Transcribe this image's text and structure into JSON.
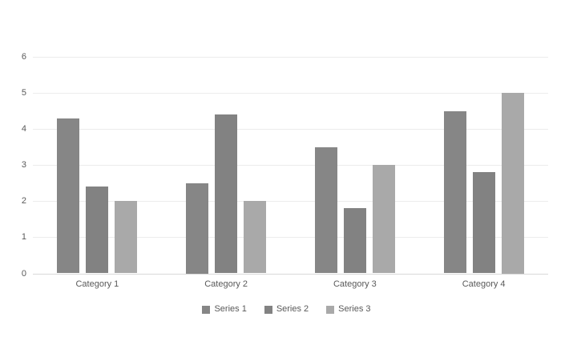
{
  "chart_data": {
    "type": "bar",
    "title": "",
    "xlabel": "",
    "ylabel": "",
    "categories": [
      "Category 1",
      "Category 2",
      "Category 3",
      "Category 4"
    ],
    "series": [
      {
        "name": "Series 1",
        "color": "#868686",
        "values": [
          4.3,
          2.5,
          3.5,
          4.5
        ]
      },
      {
        "name": "Series 2",
        "color": "#828282",
        "values": [
          2.4,
          4.4,
          1.8,
          2.8
        ]
      },
      {
        "name": "Series 3",
        "color": "#a9a9a9",
        "values": [
          2.0,
          2.0,
          3.0,
          5.0
        ]
      }
    ],
    "ylim": [
      0,
      6
    ],
    "yticks": [
      "0",
      "1",
      "2",
      "3",
      "4",
      "5",
      "6"
    ],
    "grid": true,
    "legend_position": "bottom"
  },
  "colors": {
    "background": "#ffffff",
    "gridline": "#ececec",
    "axis_line": "#d9d9d9",
    "text": "#595959"
  }
}
